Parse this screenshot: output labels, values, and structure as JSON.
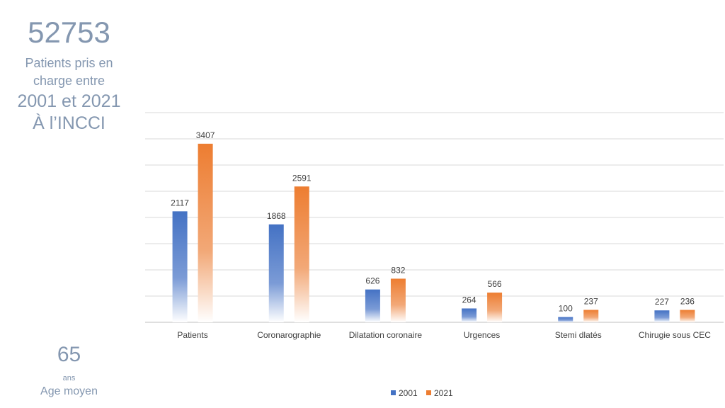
{
  "summary": {
    "total": "52753",
    "line1": "Patients pris en",
    "line2": "charge entre",
    "line3": "2001 et 2021",
    "line4": "À l’INCCI",
    "age_value": "65",
    "age_unit": "ans",
    "age_label": "Age moyen"
  },
  "chart_data": {
    "type": "bar",
    "title": "",
    "categories": [
      "Patients",
      "Coronarographie",
      "Dilatation coronaire",
      "Urgences",
      "Stemi dlatés",
      "Chirugie sous CEC"
    ],
    "series": [
      {
        "name": "2001",
        "color": "#4472c4",
        "values": [
          2117,
          1868,
          626,
          264,
          100,
          227
        ]
      },
      {
        "name": "2021",
        "color": "#ed7d31",
        "values": [
          3407,
          2591,
          832,
          566,
          237,
          236
        ]
      }
    ],
    "ylim": [
      0,
      4000
    ],
    "ytick_step": 500,
    "grid": true,
    "legend": "bottom",
    "xlabel": "",
    "ylabel": ""
  }
}
